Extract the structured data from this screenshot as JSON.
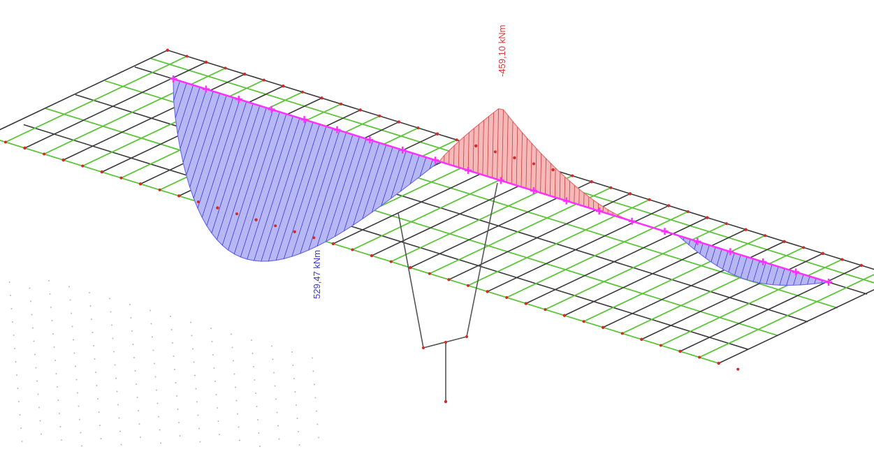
{
  "diagram": {
    "labels": {
      "max_positive_moment": "529,47 kNm",
      "max_negative_moment": "-459,10 kNm"
    },
    "colors": {
      "positive_moment": "#b7b7f4",
      "negative_moment": "#f6b9b9",
      "main_girder": "#ff30ff",
      "deck_grid_black": "#3a3a3a",
      "deck_grid_green": "#5ec43c",
      "nodes": "#d12a2a"
    }
  }
}
